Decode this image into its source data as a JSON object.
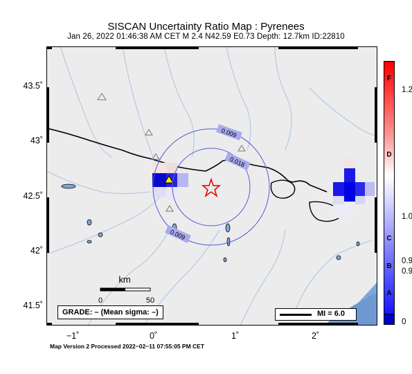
{
  "title": "SISCAN Uncertainty Ratio Map : Pyrenees",
  "subtitle": "Jan 26, 2022 01:46:38 AM CET   M 2.4   N42.59 E0.73   Depth: 12.7km   ID:22810",
  "map": {
    "y_ticks": [
      "43.5˚",
      "43˚",
      "42.5˚",
      "42˚",
      "41.5˚"
    ],
    "x_ticks": [
      "−1˚",
      "0˚",
      "1˚",
      "2˚"
    ],
    "epicenter_icon": "star-icon",
    "station_icon": "triangle-icon",
    "contour_labels": [
      "0.009",
      "0.018",
      "0.009"
    ]
  },
  "scale_bar": {
    "unit": "km",
    "left_label": "0",
    "right_label": "50"
  },
  "grade": "GRADE: – (Mean sigma: –)",
  "mi_legend": "MI = 6.0",
  "colorbar": {
    "letters": [
      "F",
      "D",
      "C",
      "B",
      "A"
    ],
    "values": [
      "1.2",
      "1.0",
      "0.9",
      "0.9",
      "0"
    ],
    "colors": {
      "high": "#ff0000",
      "mid": "#ffffff",
      "low": "#1414ff",
      "floor": "#0000cc"
    }
  },
  "footer": "Map Version 2 Processed 2022−02−11 07:55:05 PM CET"
}
